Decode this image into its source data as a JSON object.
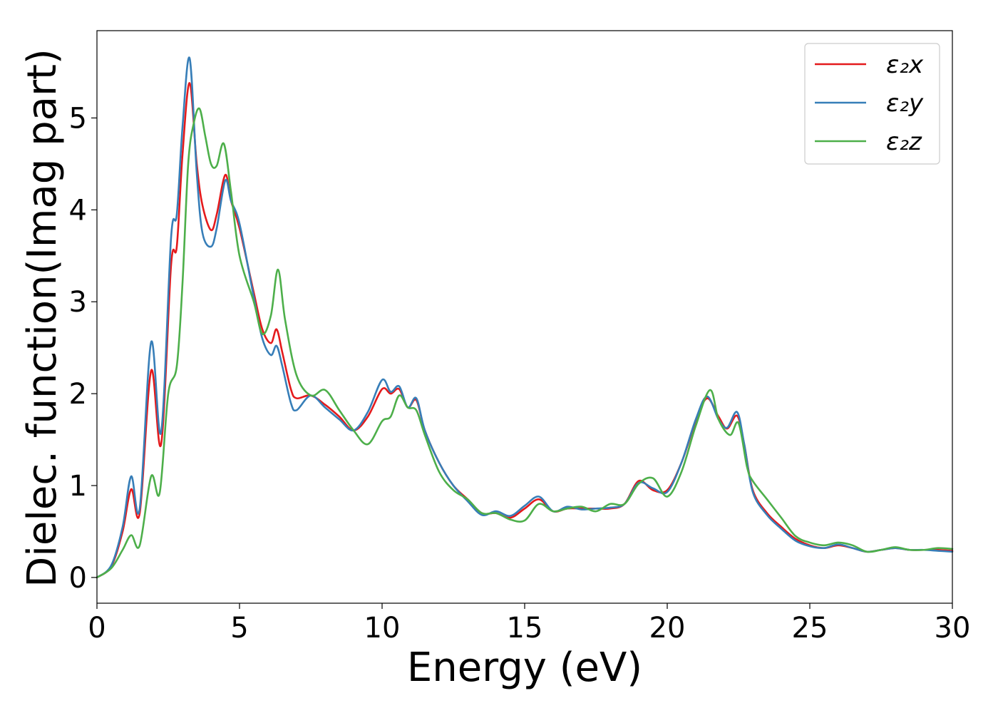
{
  "chart_data": {
    "type": "line",
    "title": "",
    "xlabel": "Energy (eV)",
    "ylabel": "Dielec. function(Imag part)",
    "xlim": [
      0,
      30
    ],
    "ylim": [
      -0.28,
      5.95
    ],
    "xticks": [
      0,
      5,
      10,
      15,
      20,
      25,
      30
    ],
    "yticks": [
      0,
      1,
      2,
      3,
      4,
      5
    ],
    "grid": false,
    "legend_position": "top-right",
    "series": [
      {
        "name": "ε₂x",
        "color": "#e41a1c",
        "x": [
          0,
          0.5,
          0.9,
          1.2,
          1.5,
          1.9,
          2.25,
          2.6,
          2.8,
          3.0,
          3.25,
          3.5,
          3.7,
          4.0,
          4.2,
          4.5,
          4.7,
          5.0,
          5.5,
          5.8,
          6.1,
          6.3,
          6.5,
          6.8,
          7.0,
          7.5,
          8.0,
          8.5,
          9.0,
          9.5,
          10.0,
          10.3,
          10.6,
          10.9,
          11.2,
          11.5,
          12.0,
          12.5,
          13.0,
          13.5,
          14.0,
          14.5,
          15.0,
          15.5,
          16.0,
          16.5,
          17.0,
          17.5,
          18.0,
          18.5,
          19.0,
          19.5,
          20.0,
          20.5,
          21.0,
          21.4,
          21.8,
          22.1,
          22.45,
          22.7,
          23.0,
          23.5,
          24.0,
          24.5,
          25.0,
          25.5,
          26.0,
          26.5,
          27.0,
          27.5,
          28.0,
          28.5,
          29.0,
          29.5,
          30.0
        ],
        "y": [
          0.0,
          0.12,
          0.5,
          0.96,
          0.7,
          2.25,
          1.45,
          3.4,
          3.6,
          4.6,
          5.38,
          4.5,
          4.05,
          3.78,
          3.95,
          4.38,
          4.1,
          3.8,
          3.1,
          2.7,
          2.55,
          2.7,
          2.45,
          2.05,
          1.95,
          1.98,
          1.88,
          1.75,
          1.6,
          1.75,
          2.05,
          2.0,
          2.05,
          1.85,
          1.93,
          1.6,
          1.25,
          1.0,
          0.85,
          0.7,
          0.7,
          0.65,
          0.75,
          0.85,
          0.72,
          0.75,
          0.75,
          0.75,
          0.75,
          0.8,
          1.05,
          0.95,
          0.95,
          1.25,
          1.7,
          1.95,
          1.75,
          1.62,
          1.76,
          1.45,
          0.95,
          0.7,
          0.55,
          0.42,
          0.35,
          0.32,
          0.35,
          0.32,
          0.28,
          0.3,
          0.32,
          0.3,
          0.3,
          0.3,
          0.29
        ]
      },
      {
        "name": "ε₂y",
        "color": "#377eb8",
        "x": [
          0,
          0.5,
          0.9,
          1.2,
          1.5,
          1.9,
          2.25,
          2.6,
          2.8,
          3.0,
          3.25,
          3.5,
          3.7,
          4.0,
          4.2,
          4.5,
          4.7,
          5.0,
          5.5,
          5.8,
          6.1,
          6.3,
          6.5,
          6.8,
          7.0,
          7.5,
          8.0,
          8.5,
          9.0,
          9.5,
          10.0,
          10.3,
          10.6,
          10.9,
          11.2,
          11.5,
          12.0,
          12.5,
          13.0,
          13.5,
          14.0,
          14.5,
          15.0,
          15.5,
          16.0,
          16.5,
          17.0,
          17.5,
          18.0,
          18.5,
          19.0,
          19.5,
          20.0,
          20.5,
          21.0,
          21.4,
          21.8,
          22.1,
          22.45,
          22.7,
          23.0,
          23.5,
          24.0,
          24.5,
          25.0,
          25.5,
          26.0,
          26.5,
          27.0,
          27.5,
          28.0,
          28.5,
          29.0,
          29.5,
          30.0
        ],
        "y": [
          0.0,
          0.13,
          0.55,
          1.1,
          0.75,
          2.56,
          1.58,
          3.7,
          3.95,
          4.9,
          5.65,
          4.4,
          3.75,
          3.6,
          3.8,
          4.32,
          4.1,
          3.85,
          3.05,
          2.6,
          2.42,
          2.52,
          2.3,
          1.9,
          1.82,
          1.98,
          1.85,
          1.72,
          1.6,
          1.8,
          2.15,
          2.02,
          2.08,
          1.85,
          1.95,
          1.6,
          1.25,
          1.0,
          0.83,
          0.68,
          0.72,
          0.67,
          0.78,
          0.88,
          0.72,
          0.77,
          0.74,
          0.75,
          0.76,
          0.8,
          1.03,
          0.97,
          0.93,
          1.25,
          1.72,
          1.97,
          1.72,
          1.63,
          1.8,
          1.45,
          0.93,
          0.68,
          0.53,
          0.4,
          0.34,
          0.32,
          0.36,
          0.32,
          0.28,
          0.3,
          0.32,
          0.3,
          0.3,
          0.29,
          0.28
        ]
      },
      {
        "name": "ε₂z",
        "color": "#4daf4a",
        "x": [
          0,
          0.5,
          0.9,
          1.2,
          1.5,
          1.9,
          2.2,
          2.5,
          2.8,
          3.0,
          3.2,
          3.4,
          3.6,
          3.8,
          4.0,
          4.2,
          4.45,
          4.7,
          5.0,
          5.5,
          5.8,
          6.1,
          6.35,
          6.6,
          7.0,
          7.5,
          8.0,
          8.5,
          9.0,
          9.5,
          10.0,
          10.3,
          10.6,
          10.9,
          11.2,
          11.5,
          12.0,
          12.5,
          13.0,
          13.5,
          14.0,
          14.5,
          15.0,
          15.5,
          16.0,
          16.5,
          17.0,
          17.5,
          18.0,
          18.5,
          19.0,
          19.5,
          20.0,
          20.5,
          21.0,
          21.5,
          21.8,
          22.2,
          22.5,
          22.8,
          23.0,
          23.5,
          24.0,
          24.5,
          25.0,
          25.5,
          26.0,
          26.5,
          27.0,
          27.5,
          28.0,
          28.5,
          29.0,
          29.5,
          30.0
        ],
        "y": [
          0.0,
          0.1,
          0.3,
          0.46,
          0.35,
          1.1,
          0.92,
          2.0,
          2.3,
          3.2,
          4.5,
          4.95,
          5.1,
          4.8,
          4.5,
          4.48,
          4.72,
          4.2,
          3.5,
          3.0,
          2.65,
          2.85,
          3.35,
          2.8,
          2.2,
          1.98,
          2.04,
          1.82,
          1.6,
          1.45,
          1.7,
          1.75,
          1.98,
          1.85,
          1.82,
          1.55,
          1.15,
          0.95,
          0.85,
          0.7,
          0.7,
          0.63,
          0.62,
          0.8,
          0.72,
          0.75,
          0.77,
          0.72,
          0.8,
          0.8,
          1.02,
          1.08,
          0.88,
          1.15,
          1.65,
          2.04,
          1.72,
          1.55,
          1.68,
          1.2,
          1.05,
          0.85,
          0.65,
          0.45,
          0.38,
          0.35,
          0.38,
          0.35,
          0.28,
          0.3,
          0.33,
          0.3,
          0.3,
          0.32,
          0.31
        ]
      }
    ]
  }
}
